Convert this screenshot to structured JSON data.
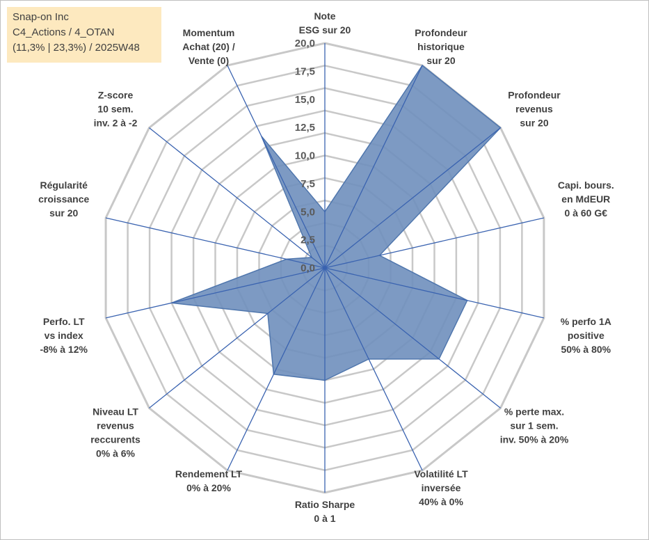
{
  "info": {
    "line1": "Snap-on Inc",
    "line2": "C4_Actions / 4_OTAN",
    "line3": "(11,3% | 23,3%) / 2025W48"
  },
  "colors": {
    "fill": "#6f8fbd",
    "stroke": "#4f76ad",
    "spoke": "#3a63b0",
    "grid": "#c8c8c8"
  },
  "chart_data": {
    "type": "radar",
    "title": "",
    "rmin": 0,
    "rmax": 20,
    "tick_labels": [
      "0,0",
      "2,5",
      "5,0",
      "7,5",
      "10,0",
      "12,5",
      "15,0",
      "17,5",
      "20,0"
    ],
    "grid_levels": 10,
    "axes": [
      [
        "Note",
        "ESG sur 20"
      ],
      [
        "Profondeur",
        "historique",
        "sur 20"
      ],
      [
        "Profondeur",
        "revenus",
        "sur 20"
      ],
      [
        "Capi. bours.",
        "en MdEUR",
        "0 à 60 G€"
      ],
      [
        "% perfo 1A",
        "positive",
        "50% à 80%"
      ],
      [
        "% perte max.",
        "sur 1 sem.",
        "inv. 50% à 20%"
      ],
      [
        "Volatilité LT",
        "inversée",
        "40% à 0%"
      ],
      [
        "Ratio Sharpe",
        "0 à 1"
      ],
      [
        "Rendement LT",
        "0% à 20%"
      ],
      [
        "Niveau LT",
        "revenus",
        "reccurents",
        "0% à 6%"
      ],
      [
        "Perfo. LT",
        "vs index",
        "-8% à 12%"
      ],
      [
        "Régularité",
        "croissance",
        "sur 20"
      ],
      [
        "Z-score",
        "10 sem.",
        "inv. 2 à -2"
      ],
      [
        "Momentum",
        "Achat (20) /",
        "Vente (0)"
      ]
    ],
    "values": [
      5.0,
      20.0,
      20.0,
      5.0,
      13.0,
      13.0,
      9.0,
      10.0,
      10.5,
      6.5,
      14.0,
      3.5,
      1.5,
      13.0
    ]
  }
}
